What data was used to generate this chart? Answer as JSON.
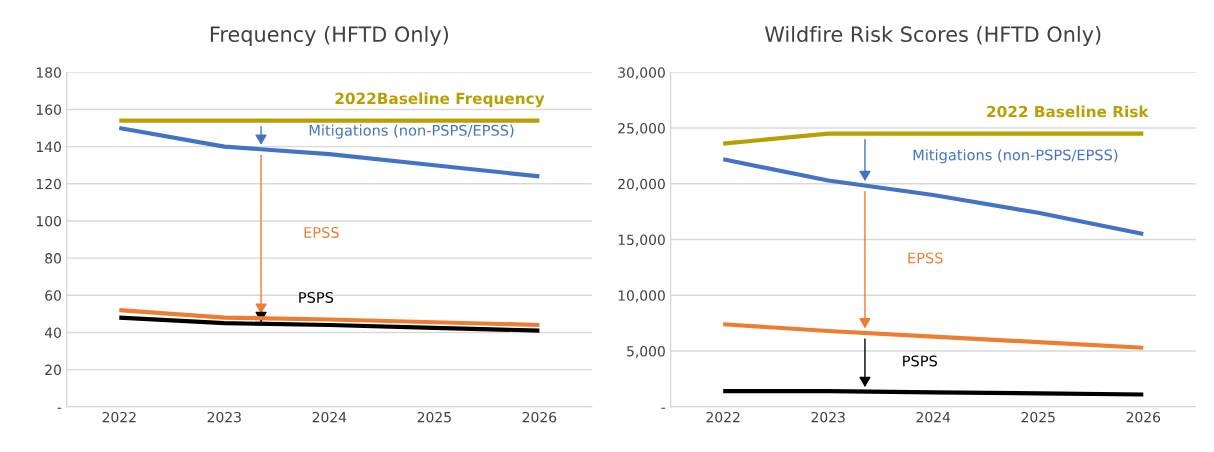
{
  "chart_data": [
    {
      "type": "line",
      "title": "Frequency (HFTD Only)",
      "categories": [
        "2022",
        "2023",
        "2024",
        "2025",
        "2026"
      ],
      "ylim": [
        0,
        180
      ],
      "yticks": [
        {
          "value": 0,
          "label": "-"
        },
        20,
        40,
        60,
        80,
        100,
        120,
        140,
        160,
        180
      ],
      "grid": "y",
      "legend": false,
      "series": [
        {
          "name": "2022Baseline Frequency",
          "color": "#b8a000",
          "values": [
            154,
            154,
            154,
            154,
            154
          ]
        },
        {
          "name": "Mitigations (non-PSPS/EPSS)",
          "color": "#4472c4",
          "values": [
            150,
            140,
            136,
            130,
            124
          ]
        },
        {
          "name": "EPSS",
          "color": "#ed7d31",
          "values": [
            52,
            48,
            47,
            45.5,
            44
          ]
        },
        {
          "name": "PSPS",
          "color": "#000000",
          "values": [
            48,
            45,
            44,
            42.5,
            41
          ]
        }
      ]
    },
    {
      "type": "line",
      "title": "Wildfire Risk Scores (HFTD Only)",
      "categories": [
        "2022",
        "2023",
        "2024",
        "2025",
        "2026"
      ],
      "ylim": [
        0,
        30000
      ],
      "yticks": [
        {
          "value": 0,
          "label": "-"
        },
        {
          "value": 5000,
          "label": "5,000"
        },
        {
          "value": 10000,
          "label": "10,000"
        },
        {
          "value": 15000,
          "label": "15,000"
        },
        {
          "value": 20000,
          "label": "20,000"
        },
        {
          "value": 25000,
          "label": "25,000"
        },
        {
          "value": 30000,
          "label": "30,000"
        }
      ],
      "grid": "y",
      "legend": false,
      "series": [
        {
          "name": "2022 Baseline Risk",
          "color": "#b8a000",
          "values": [
            23600,
            24500,
            24500,
            24500,
            24500
          ]
        },
        {
          "name": "Mitigations (non-PSPS/EPSS)",
          "color": "#4472c4",
          "values": [
            22200,
            20300,
            19000,
            17400,
            15500
          ]
        },
        {
          "name": "EPSS",
          "color": "#ed7d31",
          "values": [
            7400,
            6800,
            6300,
            5800,
            5300
          ]
        },
        {
          "name": "PSPS",
          "color": "#000000",
          "values": [
            1400,
            1400,
            1300,
            1200,
            1100
          ]
        }
      ]
    }
  ]
}
